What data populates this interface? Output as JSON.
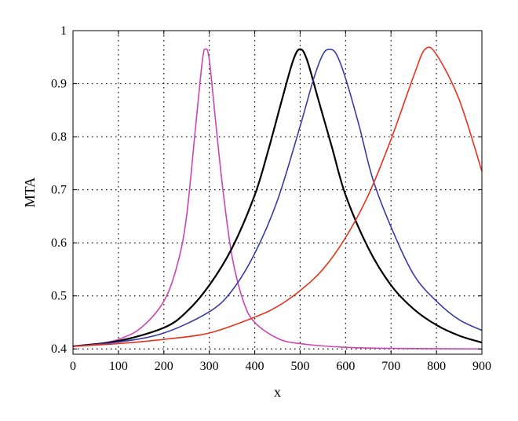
{
  "chart_data": {
    "type": "line",
    "title": "",
    "xlabel": "x",
    "ylabel": "MTA",
    "xlim": [
      0,
      900
    ],
    "ylim": [
      0.39,
      1.0
    ],
    "x_ticks": [
      0,
      100,
      200,
      300,
      400,
      500,
      600,
      700,
      800,
      900
    ],
    "y_ticks": [
      0.4,
      0.5,
      0.6,
      0.7,
      0.8,
      0.9,
      1
    ],
    "grid": true,
    "legend": "none",
    "series": [
      {
        "color": "#cc44b0",
        "points": [
          [
            0,
            0.405
          ],
          [
            50,
            0.409
          ],
          [
            100,
            0.418
          ],
          [
            150,
            0.44
          ],
          [
            200,
            0.49
          ],
          [
            230,
            0.56
          ],
          [
            250,
            0.65
          ],
          [
            270,
            0.82
          ],
          [
            285,
            0.945
          ],
          [
            292,
            0.965
          ],
          [
            300,
            0.945
          ],
          [
            315,
            0.82
          ],
          [
            330,
            0.7
          ],
          [
            350,
            0.575
          ],
          [
            375,
            0.49
          ],
          [
            400,
            0.45
          ],
          [
            450,
            0.42
          ],
          [
            500,
            0.41
          ],
          [
            600,
            0.403
          ],
          [
            700,
            0.401
          ],
          [
            900,
            0.4
          ]
        ]
      },
      {
        "color": "#000000",
        "points": [
          [
            0,
            0.405
          ],
          [
            100,
            0.415
          ],
          [
            200,
            0.44
          ],
          [
            250,
            0.47
          ],
          [
            300,
            0.52
          ],
          [
            350,
            0.59
          ],
          [
            400,
            0.69
          ],
          [
            430,
            0.775
          ],
          [
            460,
            0.87
          ],
          [
            485,
            0.945
          ],
          [
            500,
            0.965
          ],
          [
            515,
            0.945
          ],
          [
            540,
            0.87
          ],
          [
            570,
            0.78
          ],
          [
            600,
            0.69
          ],
          [
            650,
            0.59
          ],
          [
            700,
            0.52
          ],
          [
            750,
            0.475
          ],
          [
            800,
            0.445
          ],
          [
            850,
            0.425
          ],
          [
            900,
            0.412
          ]
        ]
      },
      {
        "color": "#3a3aa8",
        "points": [
          [
            0,
            0.405
          ],
          [
            100,
            0.413
          ],
          [
            200,
            0.43
          ],
          [
            300,
            0.47
          ],
          [
            350,
            0.51
          ],
          [
            400,
            0.58
          ],
          [
            450,
            0.68
          ],
          [
            500,
            0.82
          ],
          [
            530,
            0.91
          ],
          [
            550,
            0.955
          ],
          [
            565,
            0.965
          ],
          [
            580,
            0.955
          ],
          [
            600,
            0.91
          ],
          [
            630,
            0.82
          ],
          [
            660,
            0.72
          ],
          [
            700,
            0.63
          ],
          [
            750,
            0.54
          ],
          [
            800,
            0.49
          ],
          [
            850,
            0.455
          ],
          [
            900,
            0.435
          ]
        ]
      },
      {
        "color": "#e8321e",
        "points": [
          [
            0,
            0.405
          ],
          [
            100,
            0.41
          ],
          [
            200,
            0.418
          ],
          [
            300,
            0.43
          ],
          [
            400,
            0.46
          ],
          [
            450,
            0.48
          ],
          [
            500,
            0.51
          ],
          [
            550,
            0.55
          ],
          [
            600,
            0.61
          ],
          [
            650,
            0.69
          ],
          [
            700,
            0.795
          ],
          [
            750,
            0.915
          ],
          [
            775,
            0.965
          ],
          [
            800,
            0.955
          ],
          [
            850,
            0.87
          ],
          [
            900,
            0.735
          ]
        ]
      }
    ]
  }
}
